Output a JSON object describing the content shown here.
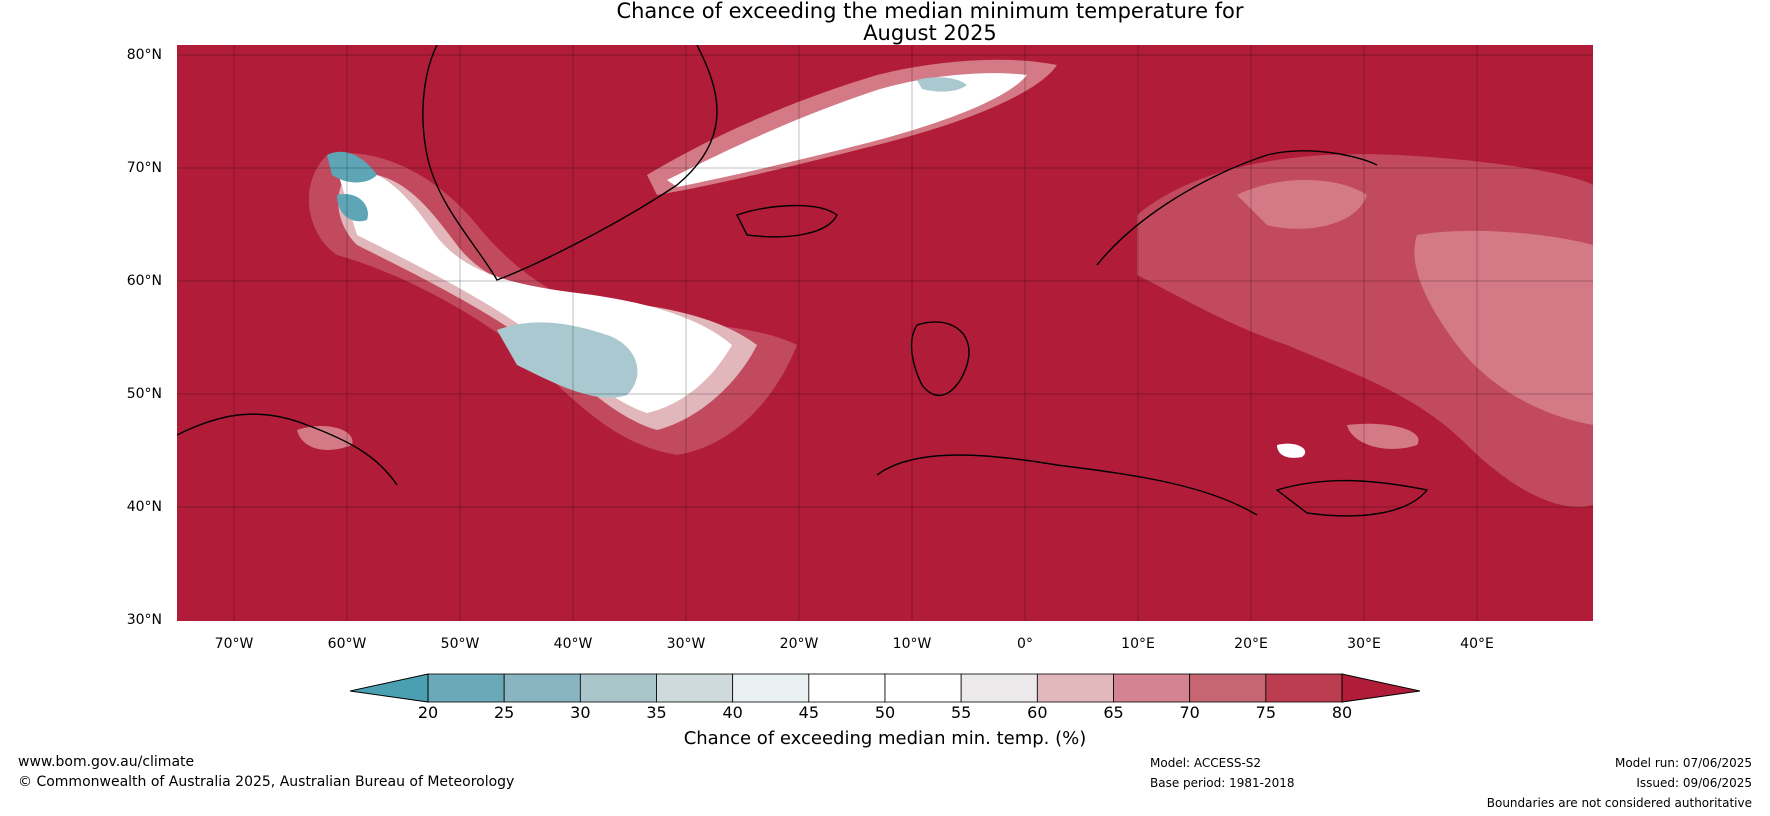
{
  "title": {
    "line1": "Chance of exceeding the median minimum temperature for",
    "line2": "August 2025"
  },
  "map": {
    "type": "contour-map",
    "region": "North Atlantic and Europe",
    "background_category": "80+",
    "latitude_ticks": [
      "80°N",
      "70°N",
      "60°N",
      "50°N",
      "40°N",
      "30°N"
    ],
    "longitude_ticks": [
      "70°W",
      "60°W",
      "50°W",
      "40°W",
      "30°W",
      "20°W",
      "10°W",
      "0°",
      "10°E",
      "20°E",
      "30°E",
      "40°E"
    ],
    "colors": {
      "very_high": "#b11c39",
      "high": "#c24a5e",
      "moderate_high": "#d37a86",
      "slightly_high": "#e2b7bc",
      "neutral": "#ffffff",
      "slightly_low": "#e8f1f3",
      "low": "#a9c8cf",
      "very_low": "#5ea6b5",
      "land_outline": "#000000",
      "borders": "#808080"
    }
  },
  "colorbar": {
    "ticks": [
      "20",
      "25",
      "30",
      "35",
      "40",
      "45",
      "50",
      "55",
      "60",
      "65",
      "70",
      "75",
      "80"
    ],
    "colors": [
      "#4a9fb0",
      "#6aaab8",
      "#89b5c0",
      "#aac5ca",
      "#cfdadd",
      "#e9f1f2",
      "#ffffff",
      "#ffffff",
      "#ebe9ea",
      "#e2b8bd",
      "#d48490",
      "#c76673",
      "#bd3d50",
      "#b11c39"
    ],
    "label": "Chance of exceeding median min. temp. (%)"
  },
  "footer": {
    "website": "www.bom.gov.au/climate",
    "copyright": "© Commonwealth of Australia 2025, Australian Bureau of Meteorology",
    "model": "Model: ACCESS-S2",
    "base_period": "Base period: 1981-2018",
    "model_run": "Model run: 07/06/2025",
    "issued": "Issued: 09/06/2025",
    "disclaimer": "Boundaries are not considered authoritative"
  }
}
